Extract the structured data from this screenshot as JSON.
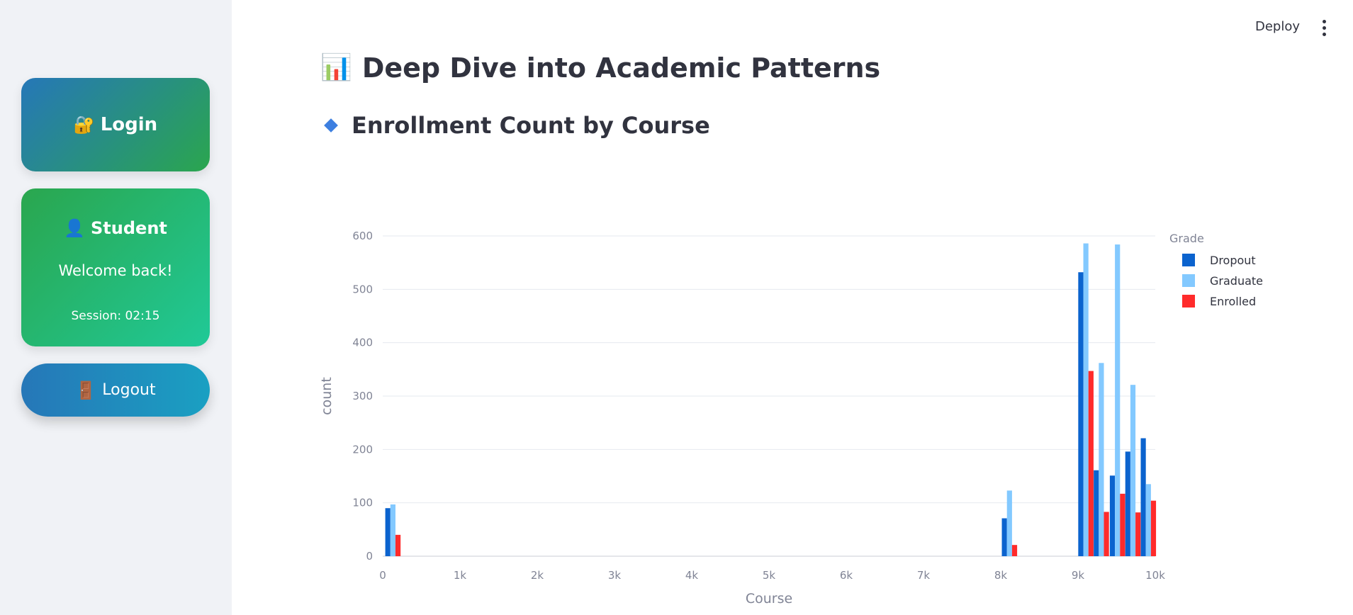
{
  "sidebar": {
    "login": {
      "icon": "🔐",
      "label": "Login"
    },
    "student": {
      "icon": "👤",
      "title": "Student",
      "welcome": "Welcome back!",
      "session": "Session: 02:15"
    },
    "logout": {
      "icon": "🚪",
      "label": "Logout"
    }
  },
  "header": {
    "deploy_label": "Deploy",
    "menu_icon": "vertical-ellipsis-icon"
  },
  "main": {
    "title_icon": "📊",
    "title": "Deep Dive into Academic Patterns",
    "section_title": "Enrollment Count by Course"
  },
  "chart_data": {
    "type": "bar",
    "xlabel": "Course",
    "ylabel": "count",
    "xlim": [
      0,
      10000
    ],
    "ylim": [
      0,
      600
    ],
    "xticks": [
      "0",
      "1k",
      "2k",
      "3k",
      "4k",
      "5k",
      "6k",
      "7k",
      "8k",
      "9k",
      "10k"
    ],
    "yticks": [
      "0",
      "100",
      "200",
      "300",
      "400",
      "500",
      "600"
    ],
    "grid": true,
    "legend_title": "Grade",
    "legend_position": "right",
    "series": [
      {
        "name": "Dropout",
        "color": "#0b63ce",
        "points": [
          {
            "x": 33,
            "y": 90
          },
          {
            "x": 8014,
            "y": 71
          },
          {
            "x": 9003,
            "y": 532
          },
          {
            "x": 9203,
            "y": 161
          },
          {
            "x": 9412,
            "y": 151
          },
          {
            "x": 9612,
            "y": 196
          },
          {
            "x": 9812,
            "y": 221
          }
        ]
      },
      {
        "name": "Graduate",
        "color": "#83c9ff",
        "points": [
          {
            "x": 33,
            "y": 97
          },
          {
            "x": 8014,
            "y": 123
          },
          {
            "x": 9003,
            "y": 586
          },
          {
            "x": 9203,
            "y": 362
          },
          {
            "x": 9412,
            "y": 584
          },
          {
            "x": 9612,
            "y": 321
          },
          {
            "x": 9812,
            "y": 135
          }
        ]
      },
      {
        "name": "Enrolled",
        "color": "#ff2b2b",
        "points": [
          {
            "x": 33,
            "y": 40
          },
          {
            "x": 8014,
            "y": 21
          },
          {
            "x": 9003,
            "y": 347
          },
          {
            "x": 9203,
            "y": 83
          },
          {
            "x": 9412,
            "y": 117
          },
          {
            "x": 9612,
            "y": 82
          },
          {
            "x": 9812,
            "y": 104
          }
        ]
      }
    ]
  }
}
